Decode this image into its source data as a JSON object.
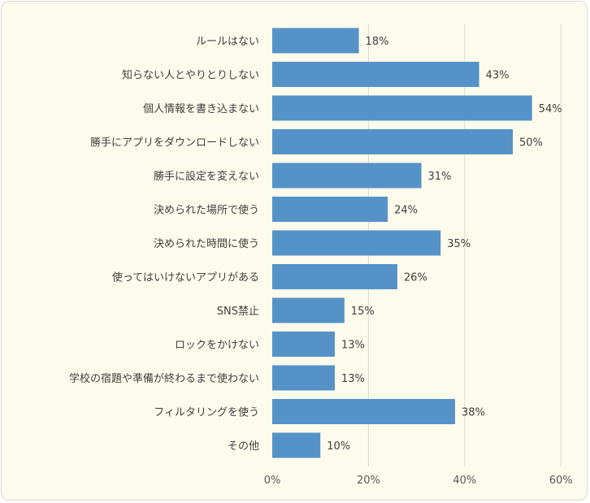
{
  "chart_data": {
    "type": "bar",
    "orientation": "horizontal",
    "title": "",
    "xlabel": "",
    "ylabel": "",
    "categories": [
      "ルールはない",
      "知らない人とやりとりしない",
      "個人情報を書き込まない",
      "勝手にアプリをダウンロードしない",
      "勝手に設定を変えない",
      "決められた場所で使う",
      "決められた時間に使う",
      "使ってはいけないアプリがある",
      "SNS禁止",
      "ロックをかけない",
      "学校の宿題や準備が終わるまで使わない",
      "フィルタリングを使う",
      "その他"
    ],
    "values": [
      18,
      43,
      54,
      50,
      31,
      24,
      35,
      26,
      15,
      13,
      13,
      38,
      10
    ],
    "value_labels": [
      "18%",
      "43%",
      "54%",
      "50%",
      "31%",
      "24%",
      "35%",
      "26%",
      "15%",
      "13%",
      "13%",
      "38%",
      "10%"
    ],
    "xlim": [
      0,
      60
    ],
    "ticks": [
      0,
      20,
      40,
      60
    ],
    "tick_labels": [
      "0%",
      "20%",
      "40%",
      "60%"
    ],
    "grid": true,
    "legend": "none",
    "colors": {
      "bar": "#5592c8",
      "background": "#fdfbec",
      "grid": "#d9d9d9",
      "text": "#404040"
    }
  }
}
